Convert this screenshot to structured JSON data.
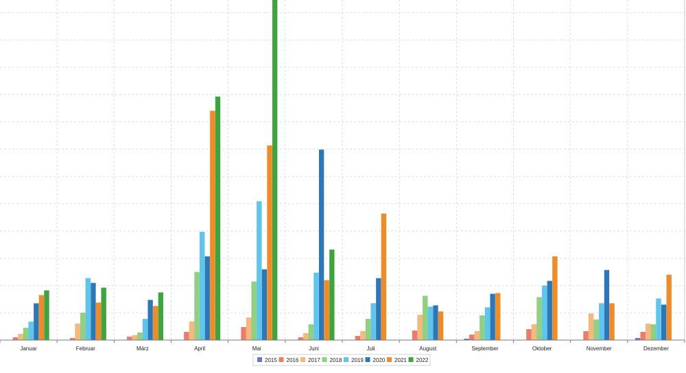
{
  "chart_data": {
    "type": "bar",
    "title": "",
    "xlabel": "",
    "ylabel": "",
    "grid": true,
    "legend_position": "bottom-center",
    "ylim": [
      0,
      1000
    ],
    "categories": [
      "Januar",
      "Februar",
      "März",
      "April",
      "Mai",
      "Juni",
      "Juli",
      "August",
      "September",
      "Oktober",
      "November",
      "Dezember"
    ],
    "series": [
      {
        "name": "2015",
        "color": "#6f74c8",
        "values": [
          0,
          0,
          0,
          0,
          0,
          0,
          0,
          0,
          4,
          0,
          0,
          6
        ]
      },
      {
        "name": "2016",
        "color": "#f07a6a",
        "values": [
          8,
          6,
          10,
          24,
          38,
          8,
          12,
          28,
          16,
          32,
          26,
          24
        ]
      },
      {
        "name": "2017",
        "color": "#f8b87a",
        "values": [
          18,
          48,
          14,
          54,
          66,
          20,
          26,
          74,
          26,
          46,
          78,
          48
        ]
      },
      {
        "name": "2018",
        "color": "#8ed17e",
        "values": [
          36,
          80,
          22,
          200,
          172,
          46,
          62,
          130,
          72,
          126,
          60,
          46
        ]
      },
      {
        "name": "2019",
        "color": "#5bc7ee",
        "values": [
          54,
          182,
          62,
          318,
          408,
          198,
          108,
          98,
          96,
          160,
          108,
          122
        ]
      },
      {
        "name": "2020",
        "color": "#2a78bc",
        "values": [
          108,
          168,
          118,
          246,
          208,
          560,
          182,
          102,
          136,
          174,
          206,
          104
        ]
      },
      {
        "name": "2021",
        "color": "#f48a22",
        "values": [
          132,
          110,
          100,
          674,
          572,
          176,
          372,
          84,
          138,
          246,
          108,
          192
        ]
      },
      {
        "name": "2022",
        "color": "#3ca53c",
        "values": [
          146,
          154,
          140,
          716,
          1002,
          266,
          0,
          0,
          0,
          0,
          0,
          0
        ]
      }
    ]
  }
}
